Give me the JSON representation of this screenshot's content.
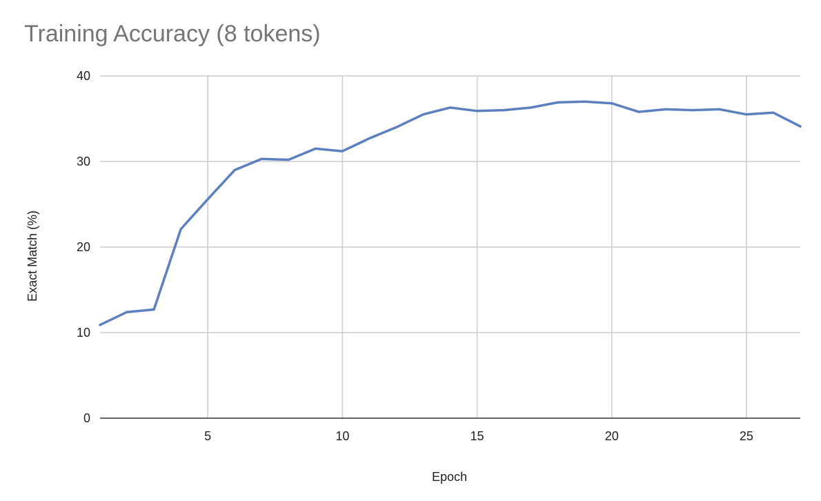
{
  "chart_data": {
    "type": "line",
    "title": "Training Accuracy (8 tokens)",
    "xlabel": "Epoch",
    "ylabel": "Exact Match (%)",
    "xlim": [
      1,
      27
    ],
    "ylim": [
      0,
      40
    ],
    "x_ticks": [
      5,
      10,
      15,
      20,
      25
    ],
    "y_ticks": [
      0,
      10,
      20,
      30,
      40
    ],
    "grid": true,
    "legend": "none",
    "line_color": "#5b7fbf",
    "grid_color": "#cccccc",
    "series": [
      {
        "x": [
          1,
          2,
          3,
          4,
          5,
          6,
          7,
          8,
          9,
          10,
          11,
          12,
          13,
          14,
          15,
          16,
          17,
          18,
          19,
          20,
          21,
          22,
          23,
          24,
          25,
          26,
          27
        ],
        "values": [
          10.9,
          12.4,
          12.7,
          22.1,
          25.6,
          29.0,
          30.3,
          30.2,
          31.5,
          31.2,
          32.7,
          34.0,
          35.5,
          36.3,
          35.9,
          36.0,
          36.3,
          36.9,
          37.0,
          36.8,
          35.8,
          36.1,
          36.0,
          36.1,
          35.5,
          35.7,
          34.1
        ]
      }
    ]
  }
}
